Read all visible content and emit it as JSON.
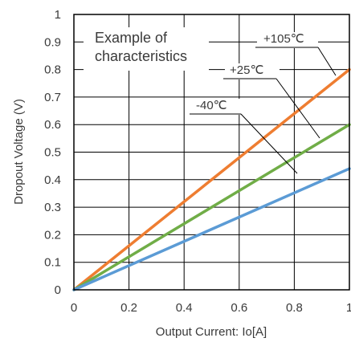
{
  "chart_data": {
    "type": "line",
    "xlabel": "Output Current: Io[A]",
    "ylabel": "Dropout Voltage (V)",
    "xlim": [
      0,
      1
    ],
    "ylim": [
      0,
      1
    ],
    "x_ticks": [
      "0",
      "0.2",
      "0.4",
      "0.6",
      "0.8",
      "1"
    ],
    "y_ticks": [
      "0",
      "0.1",
      "0.2",
      "0.3",
      "0.4",
      "0.5",
      "0.6",
      "0.7",
      "0.8",
      "0.9",
      "1"
    ],
    "grid": true,
    "annotation": {
      "line1": "Example of",
      "line2": "characteristics"
    },
    "series": [
      {
        "name": "+105℃",
        "color": "#ee7d31",
        "x": [
          0,
          1
        ],
        "y": [
          0,
          0.8
        ]
      },
      {
        "name": "+25℃",
        "color": "#70ad47",
        "x": [
          0,
          1
        ],
        "y": [
          0,
          0.6
        ]
      },
      {
        "name": "-40℃",
        "color": "#5b9bd5",
        "x": [
          0,
          1
        ],
        "y": [
          0,
          0.44
        ]
      }
    ]
  }
}
